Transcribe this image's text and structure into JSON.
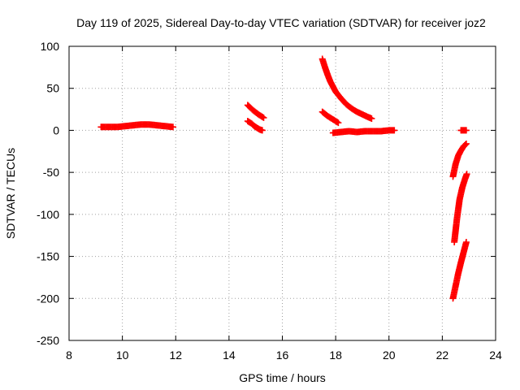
{
  "chart_data": {
    "type": "scatter",
    "title": "Day 119 of 2025, Sidereal Day-to-day VTEC variation (SDTVAR) for receiver joz2",
    "xlabel": "GPS time / hours",
    "ylabel": "SDTVAR / TECUs",
    "xlim": [
      8,
      24
    ],
    "ylim": [
      -250,
      100
    ],
    "xticks": [
      8,
      10,
      12,
      14,
      16,
      18,
      20,
      22,
      24
    ],
    "yticks": [
      -250,
      -200,
      -150,
      -100,
      -50,
      0,
      50,
      100
    ],
    "grid": true,
    "marker": "plus",
    "color": "#ff0000",
    "series": [
      {
        "x": [
          9.2,
          9.5,
          9.8,
          10.1,
          10.4,
          10.7,
          11.0,
          11.3,
          11.6,
          11.9
        ],
        "y": [
          4,
          4,
          4,
          5,
          6,
          7,
          7,
          6,
          5,
          4
        ]
      },
      {
        "x": [
          14.7,
          14.9,
          15.1,
          15.3
        ],
        "y": [
          30,
          24,
          19,
          15
        ]
      },
      {
        "x": [
          14.7,
          14.85,
          14.95,
          15.05,
          15.15,
          15.25
        ],
        "y": [
          11,
          8,
          5,
          3,
          1,
          0
        ]
      },
      {
        "x": [
          17.5,
          17.6,
          17.7,
          17.8,
          17.9,
          18.0,
          18.2,
          18.4,
          18.6,
          18.8,
          19.0,
          19.2,
          19.35
        ],
        "y": [
          85,
          75,
          66,
          58,
          52,
          46,
          38,
          31,
          26,
          22,
          19,
          16,
          14
        ]
      },
      {
        "x": [
          17.5,
          17.7,
          17.9,
          18.1
        ],
        "y": [
          22,
          17,
          13,
          9
        ]
      },
      {
        "x": [
          17.9,
          18.2,
          18.5,
          18.8,
          19.1,
          19.4,
          19.7,
          20.0,
          20.2
        ],
        "y": [
          -3,
          -2,
          -1,
          -2,
          -1,
          -1,
          -1,
          0,
          0
        ]
      },
      {
        "x": [
          22.7,
          22.8,
          22.9
        ],
        "y": [
          0,
          0,
          0
        ]
      },
      {
        "x": [
          22.4,
          22.5,
          22.6,
          22.7,
          22.8,
          22.9
        ],
        "y": [
          -55,
          -40,
          -30,
          -24,
          -19,
          -16
        ]
      },
      {
        "x": [
          22.45,
          22.55,
          22.65,
          22.75,
          22.85,
          22.92
        ],
        "y": [
          -133,
          -105,
          -82,
          -68,
          -58,
          -52
        ]
      },
      {
        "x": [
          22.4,
          22.5,
          22.6,
          22.7,
          22.8,
          22.9
        ],
        "y": [
          -200,
          -185,
          -170,
          -157,
          -145,
          -133
        ]
      }
    ]
  }
}
